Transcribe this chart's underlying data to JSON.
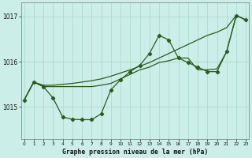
{
  "xlabel": "Graphe pression niveau de la mer (hPa)",
  "bg_color": "#cceee8",
  "grid_color": "#aaddcc",
  "line_color": "#2a5c1e",
  "xlim": [
    -0.3,
    23.3
  ],
  "ylim": [
    1014.3,
    1017.3
  ],
  "yticks": [
    1015,
    1016,
    1017
  ],
  "hours": [
    0,
    1,
    2,
    3,
    4,
    5,
    6,
    7,
    8,
    9,
    10,
    11,
    12,
    13,
    14,
    15,
    16,
    17,
    18,
    19,
    20,
    21,
    22,
    23
  ],
  "line1_y": [
    1015.15,
    1015.55,
    1015.45,
    1015.2,
    1014.78,
    1014.73,
    1014.72,
    1014.72,
    1014.85,
    1015.38,
    1015.6,
    1015.78,
    1015.92,
    1016.18,
    1016.58,
    1016.48,
    1016.08,
    1015.98,
    1015.88,
    1015.78,
    1015.78,
    1016.22,
    1017.02,
    1016.92
  ],
  "line2_y": [
    1015.15,
    1015.55,
    1015.45,
    1015.45,
    1015.45,
    1015.45,
    1015.45,
    1015.45,
    1015.48,
    1015.52,
    1015.62,
    1015.72,
    1015.82,
    1015.88,
    1015.98,
    1016.02,
    1016.08,
    1016.08,
    1015.82,
    1015.82,
    1015.84,
    1016.22,
    1017.02,
    1016.92
  ],
  "line3_y": [
    1015.15,
    1015.55,
    1015.48,
    1015.48,
    1015.5,
    1015.52,
    1015.55,
    1015.58,
    1015.62,
    1015.68,
    1015.75,
    1015.82,
    1015.9,
    1015.98,
    1016.08,
    1016.18,
    1016.28,
    1016.38,
    1016.48,
    1016.58,
    1016.65,
    1016.75,
    1017.02,
    1016.92
  ]
}
